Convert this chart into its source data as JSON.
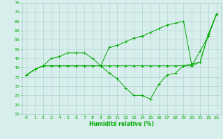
{
  "xlabel": "Humidité relative (%)",
  "xlim": [
    -0.5,
    23.5
  ],
  "ylim": [
    15,
    75
  ],
  "xticks": [
    0,
    1,
    2,
    3,
    4,
    5,
    6,
    7,
    8,
    9,
    10,
    11,
    12,
    13,
    14,
    15,
    16,
    17,
    18,
    19,
    20,
    21,
    22,
    23
  ],
  "yticks": [
    15,
    20,
    25,
    30,
    35,
    40,
    45,
    50,
    55,
    60,
    65,
    70,
    75
  ],
  "bg_color": "#d8eeed",
  "grid_color": "#a8ccc8",
  "line_color": "#00aa00",
  "series1_x": [
    0,
    1,
    2,
    3,
    4,
    5,
    6,
    7,
    8,
    9,
    10,
    11,
    12,
    13,
    14,
    15,
    16,
    17,
    18,
    19,
    20,
    21,
    22,
    23
  ],
  "series1_y": [
    36,
    39,
    41,
    45,
    46,
    48,
    48,
    48,
    45,
    41,
    51,
    52,
    54,
    56,
    57,
    59,
    61,
    63,
    64,
    65,
    41,
    43,
    58,
    69
  ],
  "series2_x": [
    0,
    1,
    2,
    3,
    4,
    5,
    6,
    7,
    8,
    9,
    10,
    11,
    12,
    13,
    14,
    15,
    16,
    17,
    18,
    19,
    20,
    21,
    22,
    23
  ],
  "series2_y": [
    36,
    39,
    41,
    41,
    41,
    41,
    41,
    41,
    41,
    41,
    37,
    34,
    29,
    25,
    25,
    23,
    31,
    36,
    37,
    41,
    41,
    49,
    57,
    69
  ],
  "series3_x": [
    0,
    1,
    2,
    3,
    4,
    5,
    6,
    7,
    8,
    9,
    10,
    11,
    12,
    13,
    14,
    15,
    16,
    17,
    18,
    19,
    20,
    21,
    22,
    23
  ],
  "series3_y": [
    36,
    39,
    41,
    41,
    41,
    41,
    41,
    41,
    41,
    41,
    41,
    41,
    41,
    41,
    41,
    41,
    41,
    41,
    41,
    41,
    42,
    43,
    58,
    69
  ]
}
